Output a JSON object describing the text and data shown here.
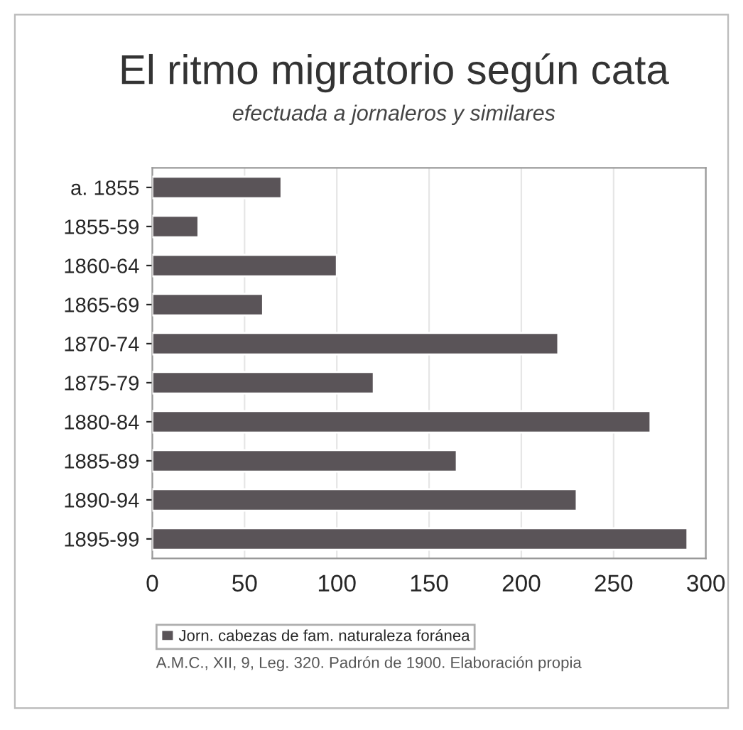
{
  "chart_data": {
    "type": "bar",
    "orientation": "horizontal",
    "title": "El ritmo migratorio según cata",
    "subtitle": "efectuada a jornaleros y similares",
    "categories": [
      "a. 1855",
      "1855-59",
      "1860-64",
      "1865-69",
      "1870-74",
      "1875-79",
      "1880-84",
      "1885-89",
      "1890-94",
      "1895-99"
    ],
    "series": [
      {
        "name": "Jorn. cabezas de fam. naturaleza foránea",
        "color": "#5a5458",
        "values": [
          70,
          25,
          100,
          60,
          220,
          120,
          270,
          165,
          230,
          290
        ]
      }
    ],
    "xlim": [
      0,
      300
    ],
    "xticks": [
      0,
      50,
      100,
      150,
      200,
      250,
      300
    ],
    "grid": "x",
    "legend": "bottom",
    "annotations": [
      "A.M.C., XII, 9, Leg. 320. Padrón de 1900. Elaboración propia"
    ]
  }
}
